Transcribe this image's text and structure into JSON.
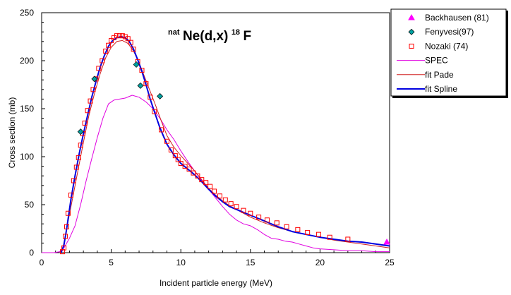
{
  "chart_data": {
    "type": "scatter",
    "title": {
      "sup_left": "nat",
      "main": "Ne(d,x)",
      "sup_mid": "18",
      "main_end": "F"
    },
    "xlabel": "Incident particle energy (MeV)",
    "ylabel": "Cross section (mb)",
    "xlim": [
      0,
      25
    ],
    "ylim": [
      0,
      250
    ],
    "xticks": [
      "0",
      "5",
      "10",
      "15",
      "20",
      "25"
    ],
    "yticks": [
      "0",
      "50",
      "100",
      "150",
      "200",
      "250"
    ],
    "grid": false,
    "legend_position": "outside-right-top",
    "colors": {
      "backkhausen": "#ff00ff",
      "fenyvesi_fill": "#00a0a0",
      "nozaki": "#ff0000",
      "spec": "#e000e0",
      "fit_pade": "#d02020",
      "fit_spline": "#0000e0"
    },
    "series": [
      {
        "name": "Backhausen (81)",
        "kind": "markers",
        "marker": "triangle",
        "points": [
          [
            24.8,
            11
          ]
        ]
      },
      {
        "name": "Fenyvesi(97)",
        "kind": "markers",
        "marker": "diamond",
        "points": [
          [
            2.8,
            126
          ],
          [
            3.8,
            181
          ],
          [
            6.8,
            196
          ],
          [
            7.1,
            174
          ],
          [
            8.5,
            163
          ]
        ]
      },
      {
        "name": "Nozaki (74)",
        "kind": "markers",
        "marker": "square",
        "points": [
          [
            1.5,
            1
          ],
          [
            1.6,
            5
          ],
          [
            1.7,
            17
          ],
          [
            1.8,
            27
          ],
          [
            1.9,
            41
          ],
          [
            2.1,
            60
          ],
          [
            2.3,
            75
          ],
          [
            2.5,
            89
          ],
          [
            2.65,
            99
          ],
          [
            2.8,
            112
          ],
          [
            2.95,
            124
          ],
          [
            3.1,
            135
          ],
          [
            3.3,
            148
          ],
          [
            3.5,
            158
          ],
          [
            3.7,
            170
          ],
          [
            3.9,
            181
          ],
          [
            4.1,
            192
          ],
          [
            4.35,
            200
          ],
          [
            4.6,
            210
          ],
          [
            4.8,
            216
          ],
          [
            5.0,
            221
          ],
          [
            5.2,
            224
          ],
          [
            5.4,
            226
          ],
          [
            5.6,
            226
          ],
          [
            5.8,
            226
          ],
          [
            6.0,
            225
          ],
          [
            6.2,
            223
          ],
          [
            6.4,
            219
          ],
          [
            6.6,
            212
          ],
          [
            6.9,
            199
          ],
          [
            7.2,
            190
          ],
          [
            7.5,
            176
          ],
          [
            7.8,
            162
          ],
          [
            8.1,
            147
          ],
          [
            8.6,
            128
          ],
          [
            9.0,
            116
          ],
          [
            9.3,
            107
          ],
          [
            9.6,
            101
          ],
          [
            9.8,
            97
          ],
          [
            10.0,
            93
          ],
          [
            10.3,
            90
          ],
          [
            10.6,
            87
          ],
          [
            10.9,
            83
          ],
          [
            11.2,
            80
          ],
          [
            11.5,
            76
          ],
          [
            11.8,
            73
          ],
          [
            12.1,
            69
          ],
          [
            12.4,
            64
          ],
          [
            12.8,
            59
          ],
          [
            13.2,
            55
          ],
          [
            13.6,
            51
          ],
          [
            14.0,
            48
          ],
          [
            14.5,
            44
          ],
          [
            15.0,
            41
          ],
          [
            15.6,
            37
          ],
          [
            16.2,
            34
          ],
          [
            16.9,
            31
          ],
          [
            17.6,
            27
          ],
          [
            18.4,
            24
          ],
          [
            19.1,
            21
          ],
          [
            19.9,
            19
          ],
          [
            20.7,
            16
          ],
          [
            22.0,
            14
          ]
        ]
      },
      {
        "name": "SPEC",
        "kind": "line",
        "points": [
          [
            0.0,
            0
          ],
          [
            0.9,
            0
          ],
          [
            1.3,
            1
          ],
          [
            1.6,
            5
          ],
          [
            2.0,
            15
          ],
          [
            2.4,
            28
          ],
          [
            2.8,
            50
          ],
          [
            3.2,
            75
          ],
          [
            3.6,
            98
          ],
          [
            4.0,
            120
          ],
          [
            4.4,
            140
          ],
          [
            4.8,
            155
          ],
          [
            5.2,
            159
          ],
          [
            5.6,
            160
          ],
          [
            6.0,
            161
          ],
          [
            6.5,
            164
          ],
          [
            7.0,
            162
          ],
          [
            7.5,
            157
          ],
          [
            8.0,
            150
          ],
          [
            8.5,
            140
          ],
          [
            9.0,
            128
          ],
          [
            9.5,
            118
          ],
          [
            10.0,
            106
          ],
          [
            10.5,
            95
          ],
          [
            11.0,
            85
          ],
          [
            11.5,
            75
          ],
          [
            12.0,
            66
          ],
          [
            12.5,
            57
          ],
          [
            13.0,
            48
          ],
          [
            13.5,
            40
          ],
          [
            14.0,
            34
          ],
          [
            14.5,
            30
          ],
          [
            15.0,
            28
          ],
          [
            15.5,
            24
          ],
          [
            16.0,
            19
          ],
          [
            16.5,
            15
          ],
          [
            17.0,
            14
          ],
          [
            17.5,
            12
          ],
          [
            18.0,
            11
          ],
          [
            18.5,
            9
          ],
          [
            19.0,
            7
          ],
          [
            19.5,
            5
          ],
          [
            20.0,
            4
          ],
          [
            21.0,
            3
          ],
          [
            22.0,
            2
          ],
          [
            23.0,
            2
          ],
          [
            24.0,
            1
          ],
          [
            25.0,
            1
          ]
        ]
      },
      {
        "name": "fit Pade",
        "kind": "line",
        "points": [
          [
            1.3,
            0
          ],
          [
            1.5,
            3
          ],
          [
            1.8,
            25
          ],
          [
            2.2,
            55
          ],
          [
            2.6,
            85
          ],
          [
            3.0,
            115
          ],
          [
            3.4,
            143
          ],
          [
            3.8,
            166
          ],
          [
            4.2,
            186
          ],
          [
            4.6,
            203
          ],
          [
            5.0,
            214
          ],
          [
            5.4,
            220
          ],
          [
            5.8,
            221
          ],
          [
            6.2,
            218
          ],
          [
            6.6,
            210
          ],
          [
            7.0,
            198
          ],
          [
            7.4,
            183
          ],
          [
            7.8,
            168
          ],
          [
            8.2,
            153
          ],
          [
            8.6,
            137
          ],
          [
            9.0,
            122
          ],
          [
            9.5,
            110
          ],
          [
            10.0,
            101
          ],
          [
            10.5,
            93
          ],
          [
            11.0,
            85
          ],
          [
            11.5,
            76
          ],
          [
            12.0,
            67
          ],
          [
            12.5,
            60
          ],
          [
            13.0,
            54
          ],
          [
            13.5,
            49
          ],
          [
            14.0,
            45
          ],
          [
            15.0,
            37
          ],
          [
            16.0,
            31
          ],
          [
            17.0,
            26
          ],
          [
            18.0,
            22
          ],
          [
            19.0,
            19
          ],
          [
            20.0,
            16
          ],
          [
            21.0,
            13
          ],
          [
            22.0,
            11
          ],
          [
            23.0,
            9
          ],
          [
            24.0,
            7
          ],
          [
            25.0,
            5
          ]
        ]
      },
      {
        "name": "fit Spline",
        "kind": "line",
        "points": [
          [
            1.4,
            0
          ],
          [
            1.6,
            8
          ],
          [
            1.8,
            25
          ],
          [
            2.1,
            55
          ],
          [
            2.4,
            80
          ],
          [
            2.7,
            103
          ],
          [
            3.0,
            124
          ],
          [
            3.3,
            143
          ],
          [
            3.6,
            162
          ],
          [
            3.9,
            178
          ],
          [
            4.2,
            193
          ],
          [
            4.5,
            205
          ],
          [
            4.8,
            215
          ],
          [
            5.1,
            221
          ],
          [
            5.4,
            224
          ],
          [
            5.7,
            225
          ],
          [
            6.0,
            224
          ],
          [
            6.3,
            220
          ],
          [
            6.6,
            212
          ],
          [
            6.9,
            201
          ],
          [
            7.2,
            189
          ],
          [
            7.5,
            175
          ],
          [
            7.8,
            160
          ],
          [
            8.1,
            147
          ],
          [
            8.5,
            130
          ],
          [
            9.0,
            113
          ],
          [
            9.5,
            102
          ],
          [
            10.0,
            93
          ],
          [
            10.5,
            87
          ],
          [
            11.0,
            81
          ],
          [
            11.5,
            74
          ],
          [
            12.0,
            66
          ],
          [
            12.5,
            59
          ],
          [
            13.0,
            53
          ],
          [
            13.5,
            48
          ],
          [
            14.0,
            45
          ],
          [
            15.0,
            39
          ],
          [
            16.0,
            33
          ],
          [
            17.0,
            27
          ],
          [
            18.0,
            22
          ],
          [
            19.0,
            19
          ],
          [
            20.0,
            16
          ],
          [
            21.0,
            14
          ],
          [
            22.0,
            12
          ],
          [
            23.0,
            11
          ],
          [
            24.0,
            9
          ],
          [
            25.0,
            7
          ]
        ]
      }
    ]
  }
}
